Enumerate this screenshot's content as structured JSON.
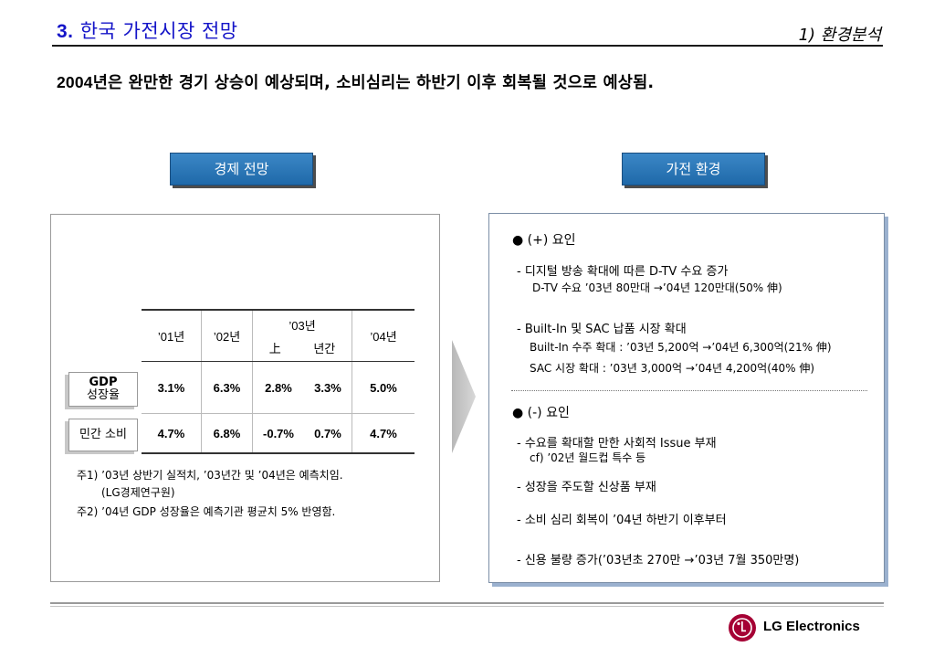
{
  "header": {
    "title_num": "3.",
    "title_text": "한국 가전시장 전망",
    "section": "1) 환경분석",
    "subtitle_year": "2004",
    "subtitle_text": "년은 완만한 경기 상승이 예상되며, 소비심리는 하반기 이후 회복될 것으로 예상됨."
  },
  "tabs": {
    "left": "경제 전망",
    "right": "가전 환경"
  },
  "table": {
    "headers": [
      "’01년",
      "’02년",
      "’03년",
      "上",
      "년간",
      "’04년"
    ],
    "gdp_label_line1": "GDP",
    "gdp_label_line2": "성장율",
    "consumption_label": "민간 소비",
    "gdp": [
      "3.1%",
      "6.3%",
      "2.8%",
      "3.3%",
      "5.0%"
    ],
    "consumption": [
      "4.7%",
      "6.8%",
      "-0.7%",
      "0.7%",
      "4.7%"
    ]
  },
  "notes": {
    "note1_line1": "주1) ’03년 상반기 실적치, ’03년간 및 ’04년은 예측치임.",
    "note1_line2": "(LG경제연구원)",
    "note2": "주2) ’04년 GDP 성장율은 예측기관 평균치 5% 반영함."
  },
  "right_panel": {
    "plus_head": "(+) 요인",
    "plus_item1": "- 디지털 방송 확대에 따른 D-TV 수요 증가",
    "plus_item1_sub": "D-TV 수요 ’03년 80만대 →’04년 120만대(50% 伸)",
    "plus_item2": "- Built-In 및 SAC 납품 시장 확대",
    "plus_item2_sub1": "Built-In 수주 확대 : ’03년 5,200억 →’04년 6,300억(21% 伸)",
    "plus_item2_sub2": "SAC 시장 확대 : ’03년 3,000억 →’04년 4,200억(40% 伸)",
    "minus_head": "(-) 요인",
    "minus_item1": "- 수요를 확대할 만한 사회적 Issue 부재",
    "minus_item1_sub": "cf) ’02년 월드컵 특수 등",
    "minus_item2": "- 성장을 주도할 신상품 부재",
    "minus_item3": "- 소비 심리 회복이 ’04년 하반기 이후부터",
    "minus_item4": "- 신용 불량 증가(’03년초 270만 →’03년 7월 350만명)"
  },
  "footer": {
    "brand": "LG Electronics"
  },
  "colors": {
    "title_blue": "#1414c8",
    "tab_blue": "#2b78ba",
    "panel_shadow": "#9bb1cf",
    "lg_red": "#a50034"
  }
}
